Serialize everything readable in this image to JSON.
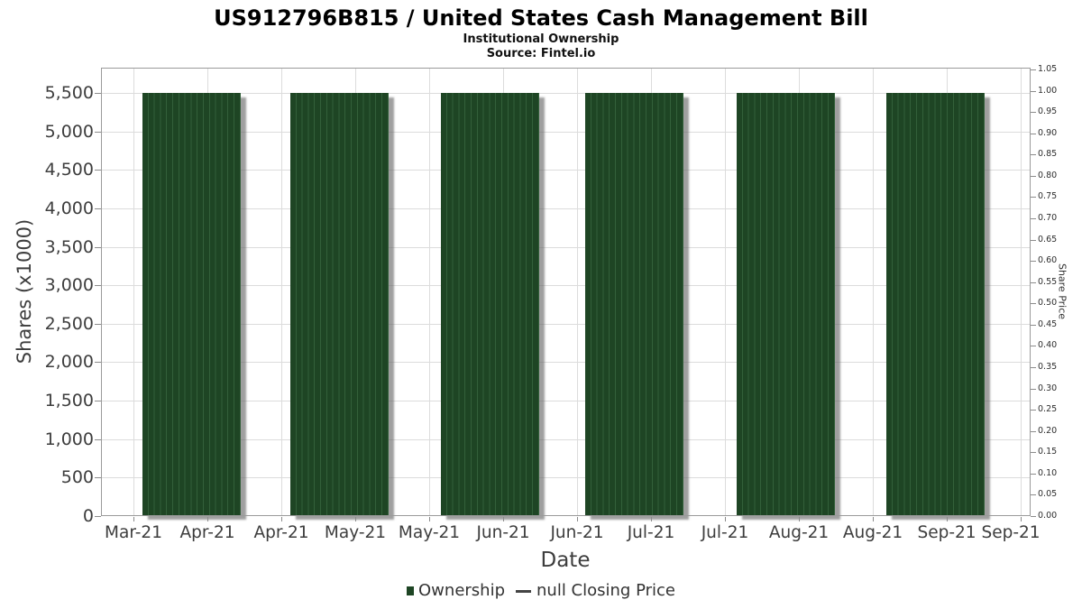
{
  "header": {
    "title": "US912796B815 / United States Cash Management Bill",
    "subtitle": "Institutional Ownership",
    "source": "Source: Fintel.io"
  },
  "chart_data": {
    "type": "bar",
    "title": "US912796B815 / United States Cash Management Bill",
    "subtitle": "Institutional Ownership",
    "source": "Source: Fintel.io",
    "xlabel": "Date",
    "x_tick_labels": [
      "Mar-21",
      "Apr-21",
      "Apr-21",
      "May-21",
      "May-21",
      "Jun-21",
      "Jun-21",
      "Jul-21",
      "Jul-21",
      "Aug-21",
      "Aug-21",
      "Sep-21",
      "Sep-21"
    ],
    "y_left_axis": {
      "title": "Shares (x1000)",
      "min": 0,
      "max": 5500,
      "tick_step": 500,
      "tick_labels": [
        "0",
        "500",
        "1,000",
        "1,500",
        "2,000",
        "2,500",
        "3,000",
        "3,500",
        "4,000",
        "4,500",
        "5,000",
        "5,500"
      ]
    },
    "y_right_axis": {
      "title": "Share Price",
      "min": 0.0,
      "max": 1.05,
      "tick_step": 0.05,
      "tick_labels": [
        "0.00",
        "0.05",
        "0.10",
        "0.15",
        "0.20",
        "0.25",
        "0.30",
        "0.35",
        "0.40",
        "0.45",
        "0.50",
        "0.55",
        "0.60",
        "0.65",
        "0.70",
        "0.75",
        "0.80",
        "0.85",
        "0.90",
        "0.95",
        "1.00",
        "1.05"
      ]
    },
    "series": [
      {
        "name": "Ownership",
        "type": "bar",
        "color": "#1e4524",
        "categories": [
          "Mar-21 to Apr-21",
          "Apr-21 to May-21",
          "May-21 to Jun-21",
          "Jun-21 to Jul-21",
          "Jul-21 to Aug-21",
          "Aug-21 to Sep-21"
        ],
        "values": [
          5500,
          5500,
          5500,
          5500,
          5500,
          5500
        ]
      },
      {
        "name": "null Closing Price",
        "type": "line",
        "color": "#444444",
        "values": []
      }
    ],
    "legend": [
      {
        "label": "Ownership",
        "marker": "square",
        "color": "#1e4524"
      },
      {
        "label": "null Closing Price",
        "marker": "line",
        "color": "#444444"
      }
    ],
    "legend_position": "bottom",
    "grid": true
  }
}
